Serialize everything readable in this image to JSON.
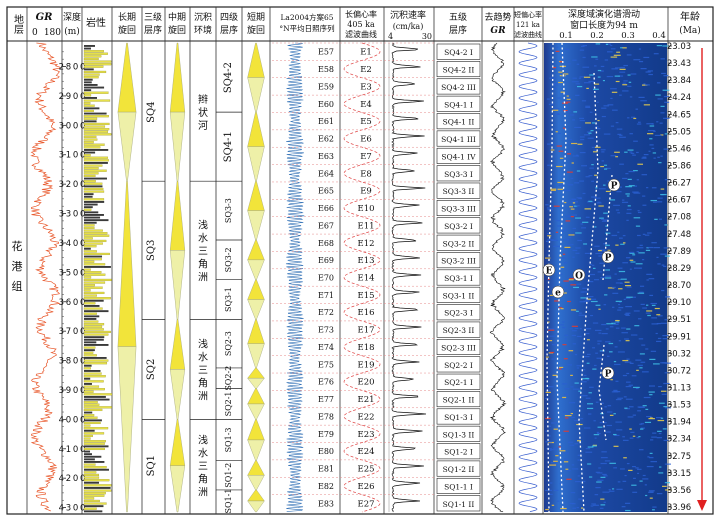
{
  "chart_data": {
    "type": "table",
    "headers": {
      "formation": "地层",
      "gr_label": "GR",
      "gr_min": "0",
      "gr_max": "180",
      "depth": "深度",
      "depth_unit": "(m)",
      "lithology": "岩性",
      "long_cycle": "长期旋回",
      "third_order": "三级层序",
      "mid_cycle": "中期旋回",
      "environment": "沉积环境",
      "fourth_order": "四级层序",
      "short_cycle": "短期旋回",
      "insolation": "La2004方案65°N平均日照序列",
      "ecc405": "长偏心率405 ka滤波曲线",
      "rate": "沉积速率",
      "rate_unit": "(cm/ka)",
      "rate_min": "4",
      "rate_max": "30",
      "fifth_order": "五级层序",
      "detrended": "去趋势",
      "detrended_gr": "GR",
      "ecc121": "短偏心率121 ka滤波曲线",
      "spectrogram": "深度域演化谱滑动窗口长度为94 m",
      "spec_ticks": [
        "0.1",
        "0.2",
        "0.3",
        "0.4"
      ],
      "age": "年龄",
      "age_unit": "(Ma)"
    },
    "formation_name": [
      "花",
      "港",
      "组"
    ],
    "depth_ticks": [
      2800,
      2900,
      3000,
      3100,
      3200,
      3300,
      3400,
      3500,
      3600,
      3700,
      3800,
      3900,
      4000,
      4100,
      4200,
      4300
    ],
    "depth_range": [
      2720,
      4315
    ],
    "ages": [
      "23.03",
      "23.43",
      "23.84",
      "24.24",
      "24.65",
      "25.05",
      "25.46",
      "25.86",
      "26.27",
      "26.67",
      "27.08",
      "27.48",
      "27.89",
      "28.29",
      "28.70",
      "29.10",
      "29.51",
      "29.91",
      "30.32",
      "30.72",
      "31.13",
      "31.53",
      "31.94",
      "32.34",
      "32.75",
      "33.15",
      "33.56",
      "33.96"
    ],
    "third_order_sequences": [
      {
        "name": "SQ4",
        "top": 2720,
        "bottom": 3190
      },
      {
        "name": "SQ3",
        "top": 3190,
        "bottom": 3660
      },
      {
        "name": "SQ2",
        "top": 3660,
        "bottom": 4000
      },
      {
        "name": "SQ1",
        "top": 4000,
        "bottom": 4315
      }
    ],
    "environments": [
      {
        "name": "辫状河",
        "top": 2720,
        "bottom": 3190
      },
      {
        "name": "浅水三角洲",
        "top": 3190,
        "bottom": 3660
      },
      {
        "name": "浅水三角洲",
        "top": 3660,
        "bottom": 4000
      },
      {
        "name": "浅水三角洲",
        "top": 4000,
        "bottom": 4315
      }
    ],
    "fourth_order_sequences": [
      {
        "name": "SQ4-2",
        "top": 2720,
        "bottom": 2955
      },
      {
        "name": "SQ4-1",
        "top": 2955,
        "bottom": 3190
      },
      {
        "name": "SQ3-3",
        "top": 3190,
        "bottom": 3390
      },
      {
        "name": "SQ3-2",
        "top": 3390,
        "bottom": 3525
      },
      {
        "name": "SQ3-1",
        "top": 3525,
        "bottom": 3660
      },
      {
        "name": "SQ2-3",
        "top": 3660,
        "bottom": 3825
      },
      {
        "name": "SQ2-2",
        "top": 3825,
        "bottom": 3895
      },
      {
        "name": "SQ2-1",
        "top": 3895,
        "bottom": 4000
      },
      {
        "name": "SQ1-3",
        "top": 4000,
        "bottom": 4140
      },
      {
        "name": "SQ1-2",
        "top": 4140,
        "bottom": 4240
      },
      {
        "name": "SQ1-1",
        "top": 4240,
        "bottom": 4315
      }
    ],
    "e_labels": [
      "E57",
      "E58",
      "E59",
      "E60",
      "E61",
      "E62",
      "E63",
      "E64",
      "E65",
      "E66",
      "E67",
      "E68",
      "E69",
      "E70",
      "E71",
      "E72",
      "E73",
      "E74",
      "E75",
      "E76",
      "E77",
      "E78",
      "E79",
      "E80",
      "E81",
      "E82",
      "E83"
    ],
    "ecc405_labels": [
      "E1",
      "E2",
      "E3",
      "E4",
      "E5",
      "E6",
      "E7",
      "E8",
      "E9",
      "E10",
      "E11",
      "E12",
      "E13",
      "E14",
      "E15",
      "E16",
      "E17",
      "E18",
      "E19",
      "E20",
      "E21",
      "E22",
      "E23",
      "E24",
      "E25",
      "E26",
      "E27"
    ],
    "fifth_order_sequences": [
      "SQ4-2 I",
      "SQ4-2 II",
      "SQ4-2 III",
      "SQ4-1 I",
      "SQ4-1 II",
      "SQ4-1 III",
      "SQ4-1 IV",
      "SQ3-3 I",
      "SQ3-3 II",
      "SQ3-3 III",
      "SQ3-2 I",
      "SQ3-2 II",
      "SQ3-2 III",
      "SQ3-1 I",
      "SQ3-1 II",
      "SQ2-3 I",
      "SQ2-3 II",
      "SQ2-3 III",
      "SQ2-2 I",
      "SQ2-1 I",
      "SQ2-1 II",
      "SQ1-3 I",
      "SQ1-3 II",
      "SQ1-2 I",
      "SQ1-2 II",
      "SQ1-1 I",
      "SQ1-1 II"
    ],
    "spectral_peaks": [
      "E",
      "e",
      "O",
      "P",
      "P",
      "P"
    ],
    "colors": {
      "gr_curve": "#e8572a",
      "lithology_sand": "#e6e04a",
      "cycle_fill": "#f2e43a",
      "insolation": "#2f6fb5",
      "ecc405": "#e04a4a",
      "rate_curve": "#111111",
      "ecc121": "#3a5fcf",
      "spectrogram_bg": "#1c3f9c",
      "age_arrow": "#e02020",
      "grid_line": "#333333"
    }
  }
}
